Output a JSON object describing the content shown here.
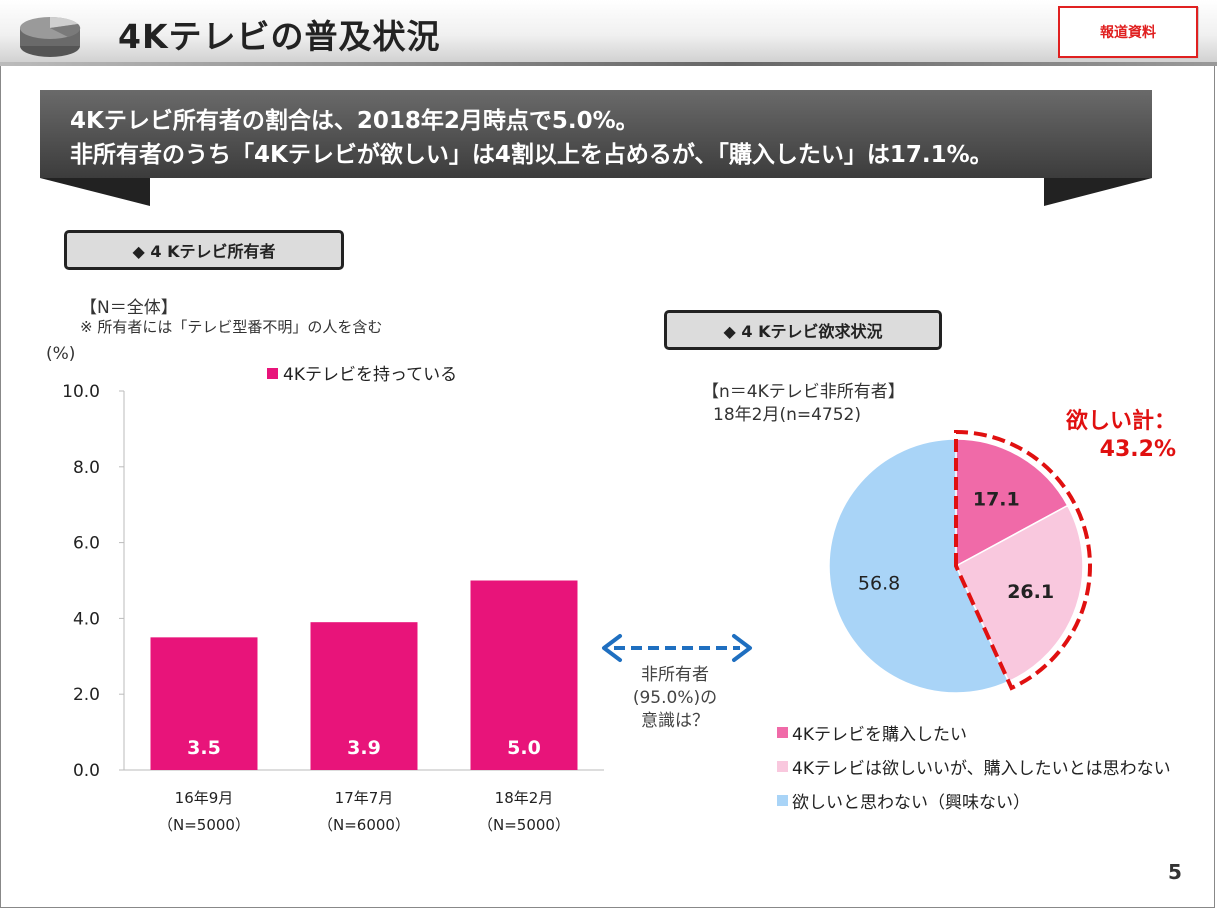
{
  "header": {
    "title": "4Kテレビの普及状況",
    "badge": "報道資料"
  },
  "banner": {
    "line1": "4Kテレビ所有者の割合は、2018年2月時点で5.0%。",
    "line2": "非所有者のうち「4Kテレビが欲しい」は4割以上を占めるが、「購入したい」は17.1%。"
  },
  "left_section": {
    "label": "◆ 4 Kテレビ所有者",
    "base": "【N＝全体】",
    "note": "※ 所有者には「テレビ型番不明」の人を含む"
  },
  "right_section": {
    "label": "◆ 4 Kテレビ欲求状況",
    "base_line1": "【n＝4Kテレビ非所有者】",
    "base_line2": "18年2月(n=4752)"
  },
  "arrow_annotation": {
    "line1": "非所有者",
    "line2": "(95.0%)の",
    "line3": "意識は？"
  },
  "want_total": {
    "label": "欲しい計：",
    "value": "43.2%"
  },
  "page_number": "5",
  "colors": {
    "bar": "#e8147a",
    "pie_buy": "#f06aa8",
    "pie_want_no_buy": "#f9c8de",
    "pie_no_want": "#a9d4f7",
    "accent_red": "#e01010",
    "arrow_blue": "#1f6fc0"
  },
  "chart_data": [
    {
      "type": "bar",
      "title": "",
      "ylabel": "(%)",
      "ylim": [
        0,
        10
      ],
      "yticks": [
        "0.0",
        "2.0",
        "4.0",
        "6.0",
        "8.0",
        "10.0"
      ],
      "categories": [
        "16年9月",
        "17年7月",
        "18年2月"
      ],
      "category_sublabels": [
        "（N=5000）",
        "（N=6000）",
        "（N=5000）"
      ],
      "series": [
        {
          "name": "4Kテレビを持っている",
          "values": [
            3.5,
            3.9,
            5.0
          ],
          "labels": [
            "3.5",
            "3.9",
            "5.0"
          ]
        }
      ]
    },
    {
      "type": "pie",
      "slices": [
        {
          "name": "4Kテレビを購入したい",
          "value": 17.1,
          "label": "17.1"
        },
        {
          "name": "4Kテレビは欲しいいが、購入したいとは思わない",
          "value": 26.1,
          "label": "26.1"
        },
        {
          "name": "欲しいと思わない（興味ない）",
          "value": 56.8,
          "label": "56.8"
        }
      ]
    }
  ]
}
